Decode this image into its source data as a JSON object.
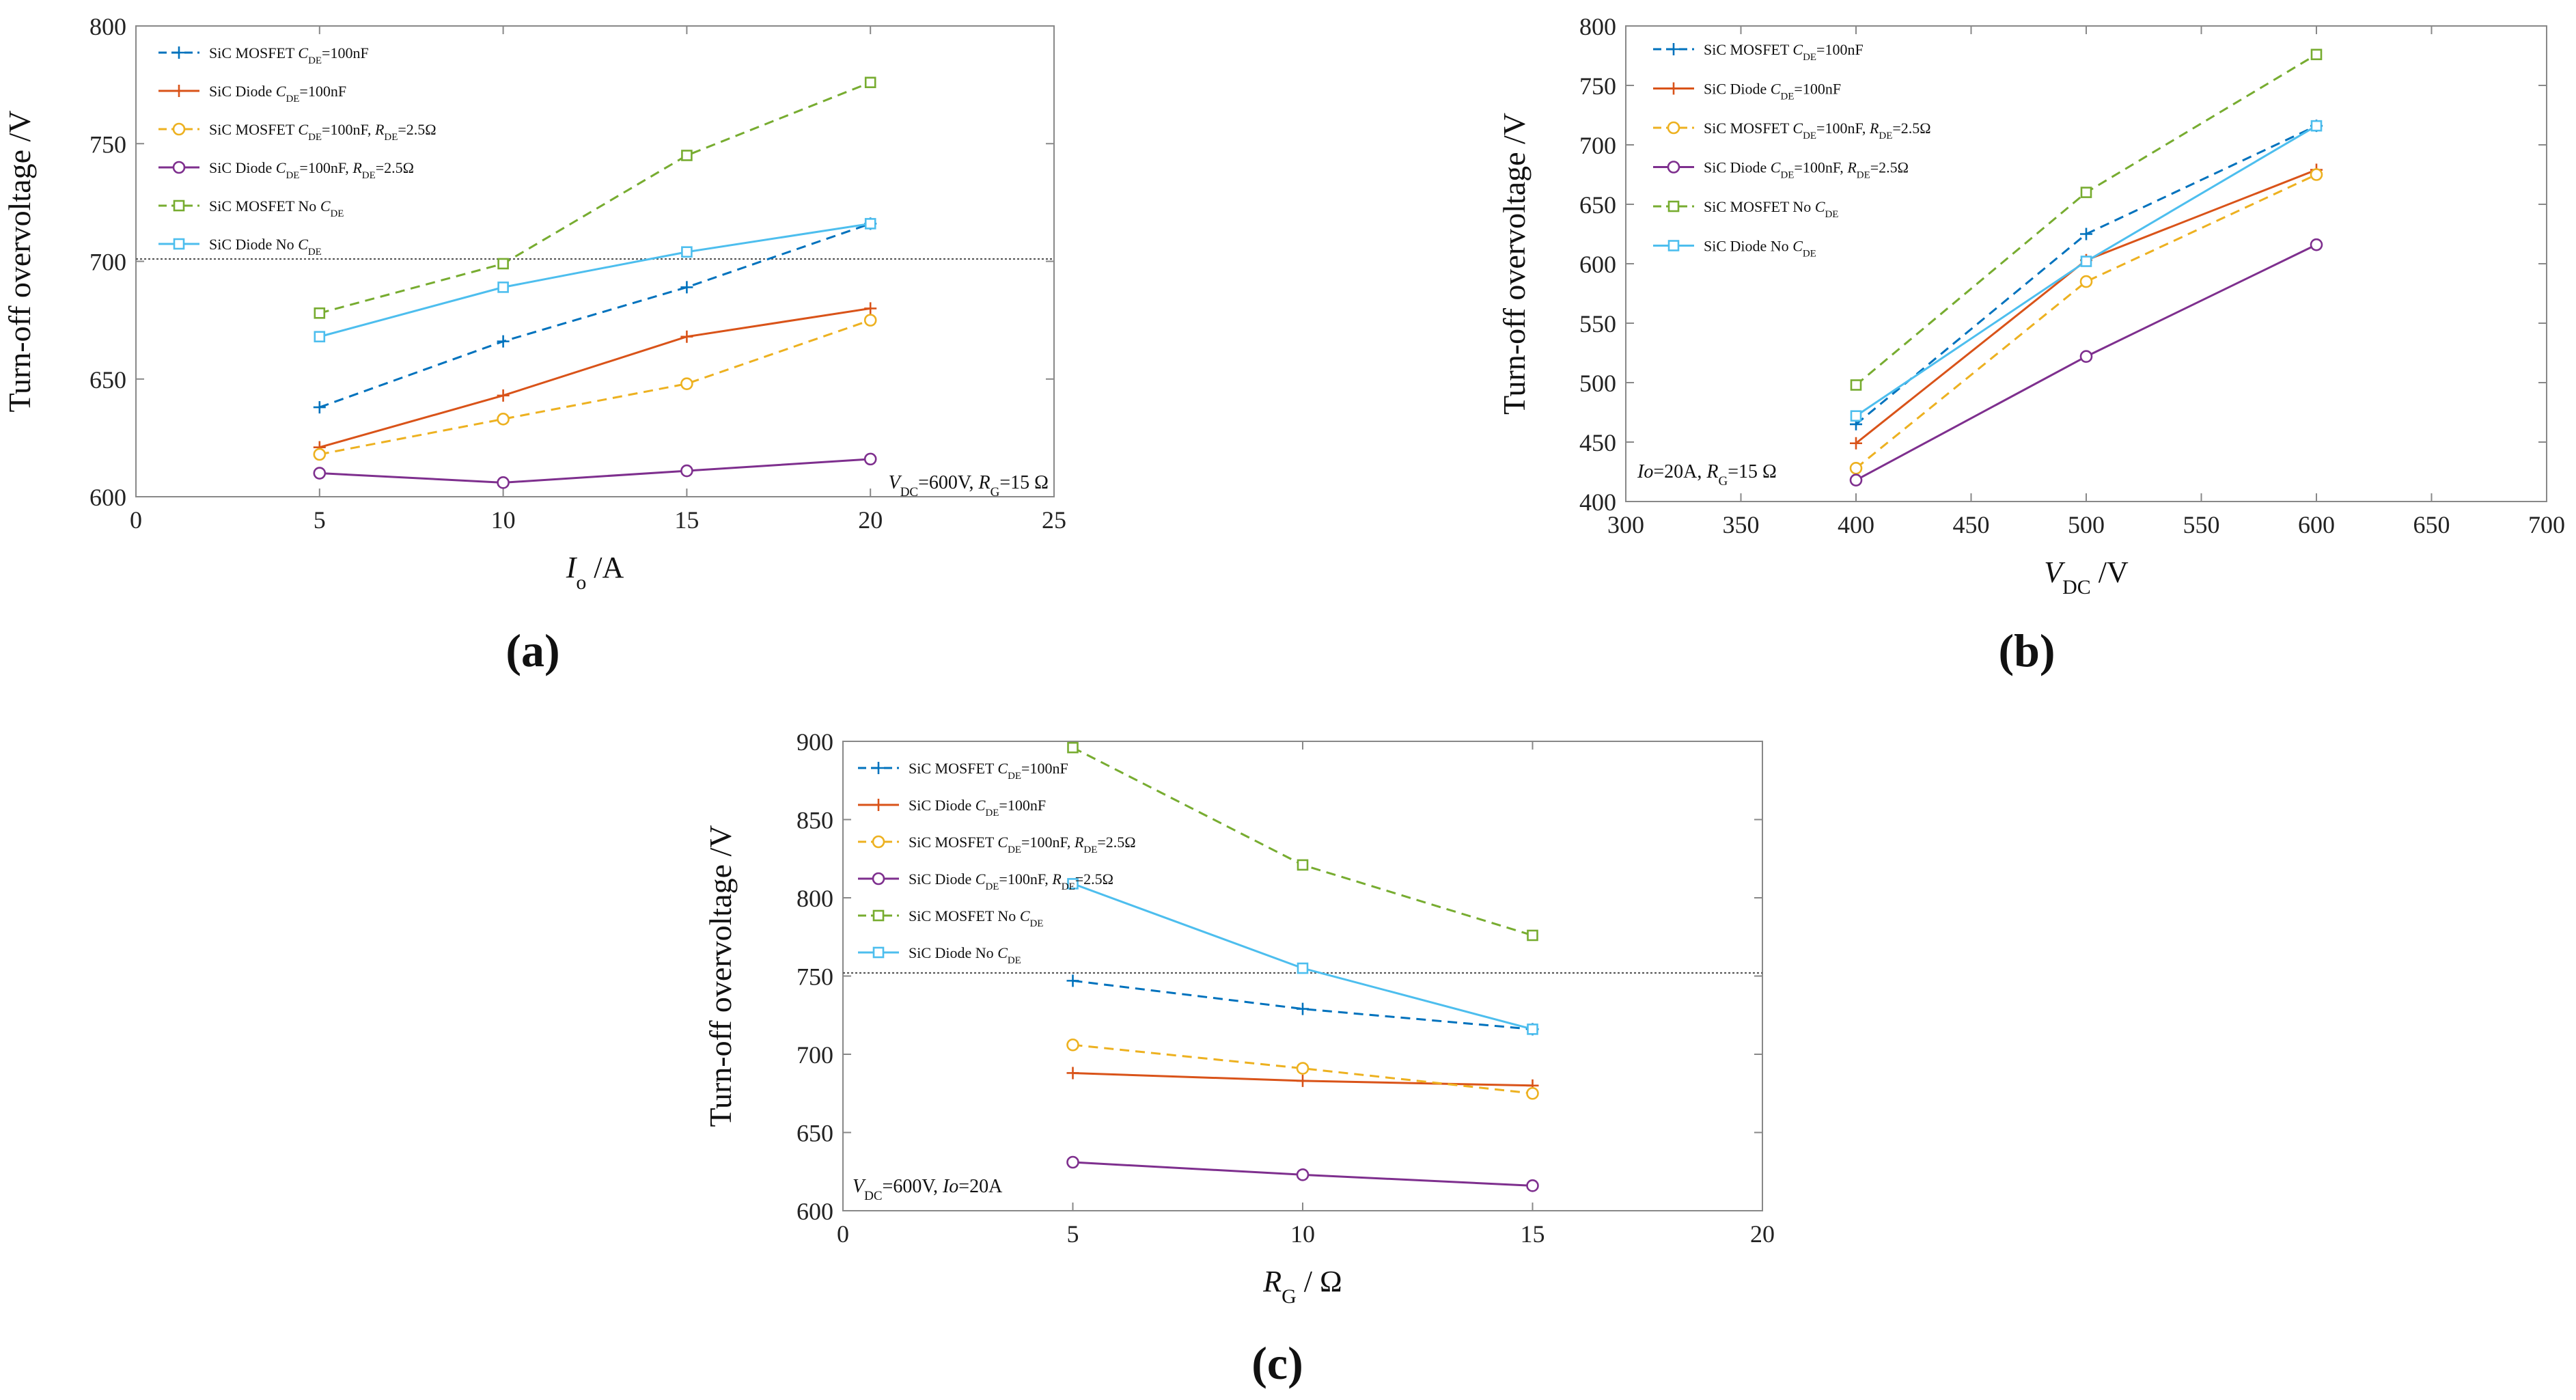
{
  "colors": {
    "mosfet": "#0072BD",
    "diode": "#D95319",
    "mosfet_rde": "#EDB120",
    "diode_rde": "#7E2F8E",
    "mosfet_nocde": "#77AC30",
    "diode_nocde": "#4DBEEE",
    "axis": "#888888",
    "refline": "#555555"
  },
  "legend_labels": [
    [
      "SiC MOSFET ",
      "C",
      "DE",
      "=100nF",
      "",
      "",
      ""
    ],
    [
      "SiC Diode ",
      "C",
      "DE",
      "=100nF",
      "",
      "",
      ""
    ],
    [
      "SiC MOSFET ",
      "C",
      "DE",
      "=100nF, ",
      "R",
      "DE",
      "=2.5Ω"
    ],
    [
      "SiC Diode ",
      "C",
      "DE",
      "=100nF, ",
      "R",
      "DE",
      "=2.5Ω"
    ],
    [
      "SiC MOSFET No ",
      "C",
      "DE",
      "",
      "",
      "",
      ""
    ],
    [
      "SiC Diode No ",
      "C",
      "DE",
      "",
      "",
      "",
      ""
    ]
  ],
  "chart_data": [
    {
      "type": "line",
      "panel_label": "(a)",
      "ylabel": "Turn-off overvoltage  /V",
      "xlabel": {
        "main": "I",
        "sub": "o",
        "rest": " /A"
      },
      "xlim": [
        0,
        25
      ],
      "ylim": [
        600,
        800
      ],
      "xticks": [
        0,
        5,
        10,
        15,
        20,
        25
      ],
      "yticks": [
        600,
        650,
        700,
        750,
        800
      ],
      "reference_line": 701,
      "annotation": {
        "parts": [
          [
            "V",
            "i"
          ],
          [
            "DC",
            "sub"
          ],
          [
            "=600V, ",
            "n"
          ],
          [
            "R",
            "i"
          ],
          [
            "G",
            "sub"
          ],
          [
            "=15 Ω",
            "n"
          ]
        ]
      },
      "x": [
        5,
        10,
        15,
        20
      ],
      "series": [
        {
          "name": "SiC MOSFET CDE=100nF",
          "values": [
            638,
            666,
            689,
            716
          ]
        },
        {
          "name": "SiC Diode CDE=100nF",
          "values": [
            621,
            643,
            668,
            680
          ]
        },
        {
          "name": "SiC MOSFET CDE=100nF, RDE=2.5Ω",
          "values": [
            618,
            633,
            648,
            675
          ]
        },
        {
          "name": "SiC Diode CDE=100nF, RDE=2.5Ω",
          "values": [
            610,
            606,
            611,
            616
          ]
        },
        {
          "name": "SiC MOSFET No CDE",
          "values": [
            678,
            699,
            745,
            776
          ]
        },
        {
          "name": "SiC Diode No CDE",
          "values": [
            668,
            689,
            704,
            716
          ]
        }
      ]
    },
    {
      "type": "line",
      "panel_label": "(b)",
      "ylabel": "Turn-off overvoltage  /V",
      "xlabel": {
        "main": "V",
        "sub": "DC",
        "rest": " /V"
      },
      "xlim": [
        300,
        700
      ],
      "ylim": [
        400,
        800
      ],
      "xticks": [
        300,
        350,
        400,
        450,
        500,
        550,
        600,
        650,
        700
      ],
      "yticks": [
        400,
        450,
        500,
        550,
        600,
        650,
        700,
        750,
        800
      ],
      "reference_line": null,
      "annotation": {
        "parts": [
          [
            "Io",
            "i"
          ],
          [
            "=20A, ",
            "n"
          ],
          [
            "R",
            "i"
          ],
          [
            "G",
            "sub"
          ],
          [
            "=15 Ω",
            "n"
          ]
        ]
      },
      "x": [
        400,
        500,
        600
      ],
      "series": [
        {
          "name": "SiC MOSFET CDE=100nF",
          "values": [
            465,
            625,
            716
          ]
        },
        {
          "name": "SiC Diode CDE=100nF",
          "values": [
            449,
            603,
            679
          ]
        },
        {
          "name": "SiC MOSFET CDE=100nF, RDE=2.5Ω",
          "values": [
            428,
            585,
            675
          ]
        },
        {
          "name": "SiC Diode CDE=100nF, RDE=2.5Ω",
          "values": [
            418,
            522,
            616
          ]
        },
        {
          "name": "SiC MOSFET No CDE",
          "values": [
            498,
            660,
            776
          ]
        },
        {
          "name": "SiC Diode No CDE",
          "values": [
            472,
            602,
            716
          ]
        }
      ]
    },
    {
      "type": "line",
      "panel_label": "(c)",
      "ylabel": "Turn-off overvoltage  /V",
      "xlabel": {
        "main": "R",
        "sub": "G",
        "rest": " / Ω"
      },
      "xlim": [
        0,
        20
      ],
      "ylim": [
        600,
        900
      ],
      "xticks": [
        0,
        5,
        10,
        15,
        20
      ],
      "yticks": [
        600,
        650,
        700,
        750,
        800,
        850,
        900
      ],
      "reference_line": 752,
      "annotation": {
        "parts": [
          [
            "V",
            "i"
          ],
          [
            "DC",
            "sub"
          ],
          [
            "=600V, ",
            "n"
          ],
          [
            "Io",
            "i"
          ],
          [
            "=20A",
            "n"
          ]
        ]
      },
      "x": [
        5,
        10,
        15
      ],
      "series": [
        {
          "name": "SiC MOSFET CDE=100nF",
          "values": [
            747,
            729,
            716
          ]
        },
        {
          "name": "SiC Diode CDE=100nF",
          "values": [
            688,
            683,
            680
          ]
        },
        {
          "name": "SiC MOSFET CDE=100nF, RDE=2.5Ω",
          "values": [
            706,
            691,
            675
          ]
        },
        {
          "name": "SiC Diode CDE=100nF, RDE=2.5Ω",
          "values": [
            631,
            623,
            616
          ]
        },
        {
          "name": "SiC MOSFET No CDE",
          "values": [
            896,
            821,
            776
          ]
        },
        {
          "name": "SiC Diode No CDE",
          "values": [
            809,
            755,
            716
          ]
        }
      ]
    }
  ]
}
